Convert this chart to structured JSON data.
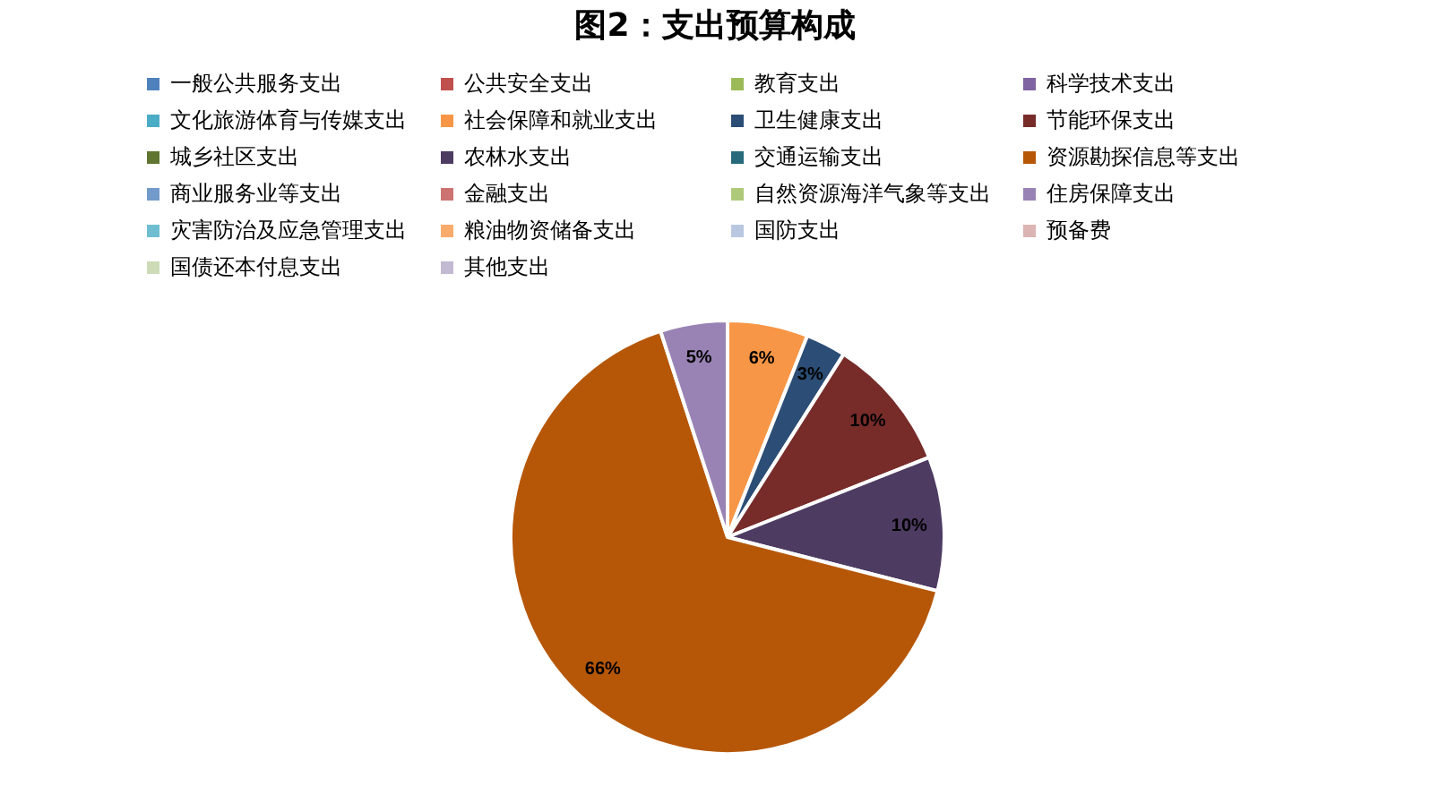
{
  "chart_data": {
    "type": "pie",
    "title": "图2：支出预算构成",
    "categories": [
      "一般公共服务支出",
      "公共安全支出",
      "教育支出",
      "科学技术支出",
      "文化旅游体育与传媒支出",
      "社会保障和就业支出",
      "卫生健康支出",
      "节能环保支出",
      "城乡社区支出",
      "农林水支出",
      "交通运输支出",
      "资源勘探信息等支出",
      "商业服务业等支出",
      "金融支出",
      "自然资源海洋气象等支出",
      "住房保障支出",
      "灾害防治及应急管理支出",
      "粮油物资储备支出",
      "国防支出",
      "预备费",
      "国债还本付息支出",
      "其他支出"
    ],
    "values": [
      0,
      0,
      0,
      0,
      0,
      6,
      3,
      10,
      0,
      10,
      0,
      66,
      0,
      0,
      0,
      5,
      0,
      0,
      0,
      0,
      0,
      0
    ],
    "value_labels": [
      null,
      null,
      null,
      null,
      null,
      "6%",
      "3%",
      "10%",
      null,
      "10%",
      null,
      "66%",
      null,
      null,
      null,
      "5%",
      null,
      null,
      null,
      null,
      null,
      null
    ],
    "colors": [
      "#4f81bd",
      "#c0504d",
      "#9bbb59",
      "#8064a2",
      "#4bacc6",
      "#f79646",
      "#2c4d75",
      "#772c2a",
      "#5f7530",
      "#4d3b62",
      "#276a7c",
      "#b65708",
      "#729aca",
      "#cd7371",
      "#afc97a",
      "#9983b5",
      "#6fbdd1",
      "#f9ab6b",
      "#b9c7e0",
      "#dbb4b3",
      "#cddbb7",
      "#c2b9d2"
    ],
    "legend": "top"
  }
}
